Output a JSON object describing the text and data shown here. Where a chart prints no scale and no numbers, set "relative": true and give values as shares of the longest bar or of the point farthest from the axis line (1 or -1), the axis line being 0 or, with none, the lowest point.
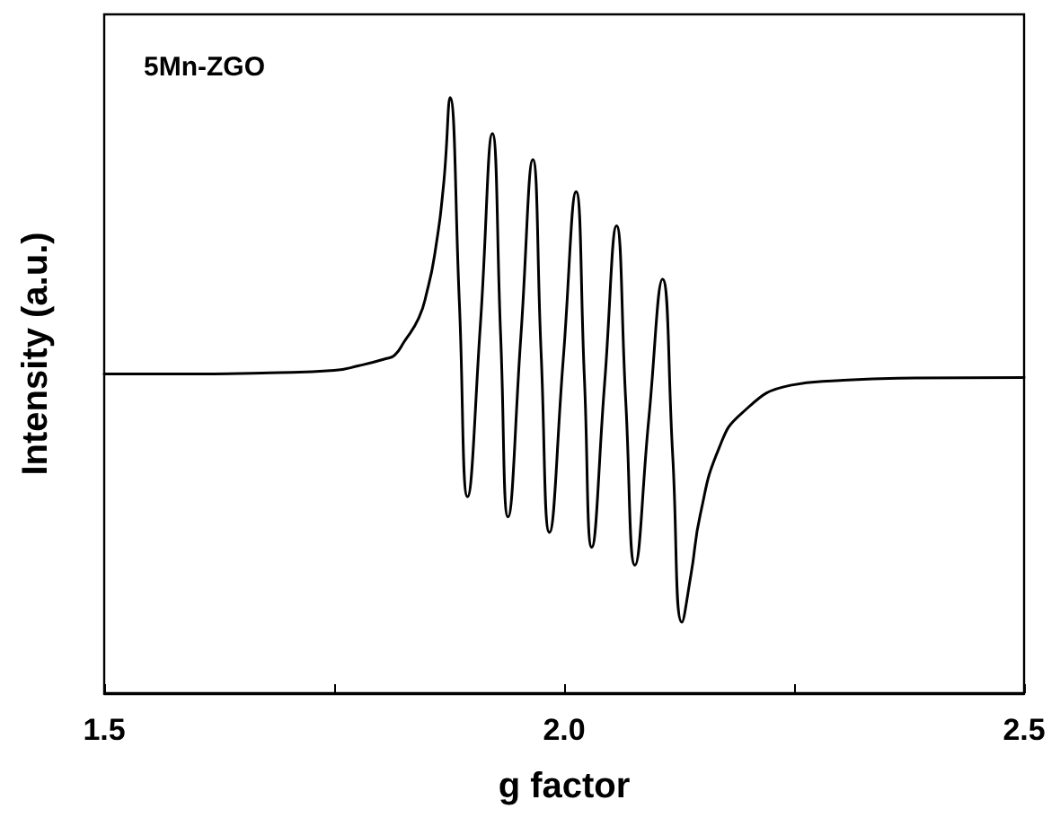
{
  "chart_data": {
    "type": "line",
    "relative": true,
    "xlabel": "g factor",
    "ylabel": "Intensity (a.u.)",
    "annotations": [
      "5Mn-ZGO"
    ],
    "xlim": [
      1.5,
      2.5
    ],
    "xticks": [
      1.5,
      {
        "value": 1.75,
        "label": null
      },
      {
        "value": 2,
        "label": "2.0"
      },
      {
        "value": 2.25,
        "label": null
      },
      2.5
    ],
    "tick_labels": "x",
    "grid": false,
    "marker": "none",
    "line_style": "solid",
    "series": [
      {
        "color": "#000000",
        "x": [
          1.5,
          1.6,
          1.68,
          1.75,
          1.777,
          1.807,
          1.816,
          1.826,
          1.842,
          1.851,
          1.859,
          1.869,
          1.876,
          1.886,
          1.895,
          1.909,
          1.922,
          1.931,
          1.939,
          1.953,
          1.966,
          1.975,
          1.984,
          1.999,
          2.013,
          2.022,
          2.03,
          2.044,
          2.057,
          2.067,
          2.077,
          2.092,
          2.107,
          2.118,
          2.128,
          2.138,
          2.148,
          2.168,
          2.193,
          2.246,
          2.3,
          2.363,
          2.5
        ],
        "values": [
          0.536,
          0.536,
          0.538,
          0.542,
          0.55,
          0.562,
          0.568,
          0.59,
          0.63,
          0.675,
          0.734,
          0.855,
          1.0,
          0.66,
          0.33,
          0.62,
          0.94,
          0.6,
          0.296,
          0.6,
          0.896,
          0.57,
          0.27,
          0.56,
          0.842,
          0.53,
          0.245,
          0.52,
          0.785,
          0.49,
          0.215,
          0.46,
          0.695,
          0.4,
          0.119,
          0.2,
          0.3,
          0.41,
          0.47,
          0.517,
          0.525,
          0.529,
          0.53
        ]
      }
    ]
  }
}
